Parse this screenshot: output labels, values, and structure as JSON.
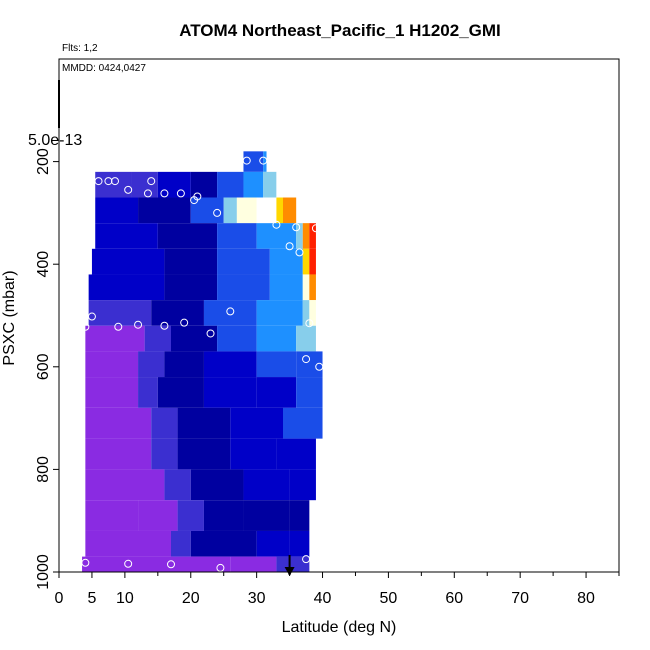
{
  "chart_data": {
    "type": "heatmap",
    "title": "ATOM4 Northeast_Pacific_1 H1202_GMI",
    "flights_label": "Flts: 1,2",
    "dates_label": "MMDD: 0424,0427",
    "scale_label": "5.0e-13",
    "xlabel": "Latitude (deg N)",
    "ylabel": "PSXC (mbar)",
    "xlim": [
      0,
      85
    ],
    "ylim": [
      1000,
      0
    ],
    "x_ticks": [
      0,
      5,
      10,
      20,
      30,
      40,
      50,
      60,
      70,
      80
    ],
    "y_ticks": [
      200,
      400,
      600,
      800,
      1000
    ],
    "colormap": [
      "#8a2be2",
      "#3b2fd0",
      "#0000c8",
      "#0000a0",
      "#1a4de8",
      "#1e90ff",
      "#87ceeb",
      "#ffffff",
      "#ffffe0",
      "#ffd700",
      "#ff8c00",
      "#ff2000"
    ],
    "color_scale_note": "value index 0-11 maps to colormap",
    "rows": [
      {
        "p_top": 180,
        "p_bot": 220,
        "cells": [
          {
            "x0": 28,
            "x1": 31,
            "v": 4
          },
          {
            "x0": 31,
            "x1": 31.5,
            "v": 5
          }
        ]
      },
      {
        "p_top": 220,
        "p_bot": 270,
        "cells": [
          {
            "x0": 5.5,
            "x1": 11,
            "v": 1
          },
          {
            "x0": 11,
            "x1": 15,
            "v": 1
          },
          {
            "x0": 15,
            "x1": 20,
            "v": 2
          },
          {
            "x0": 20,
            "x1": 24,
            "v": 3
          },
          {
            "x0": 24,
            "x1": 28,
            "v": 4
          },
          {
            "x0": 28,
            "x1": 31,
            "v": 5
          },
          {
            "x0": 31,
            "x1": 33,
            "v": 6
          },
          {
            "x0": 33,
            "x1": 34,
            "v": 7
          }
        ]
      },
      {
        "p_top": 270,
        "p_bot": 320,
        "cells": [
          {
            "x0": 5.5,
            "x1": 12,
            "v": 2
          },
          {
            "x0": 12,
            "x1": 20,
            "v": 3
          },
          {
            "x0": 20,
            "x1": 25,
            "v": 4
          },
          {
            "x0": 25,
            "x1": 27,
            "v": 6
          },
          {
            "x0": 27,
            "x1": 30,
            "v": 8
          },
          {
            "x0": 30,
            "x1": 33,
            "v": 7
          },
          {
            "x0": 33,
            "x1": 34,
            "v": 9
          },
          {
            "x0": 34,
            "x1": 36,
            "v": 10
          }
        ]
      },
      {
        "p_top": 320,
        "p_bot": 370,
        "cells": [
          {
            "x0": 5.5,
            "x1": 15,
            "v": 2
          },
          {
            "x0": 15,
            "x1": 24,
            "v": 3
          },
          {
            "x0": 24,
            "x1": 30,
            "v": 4
          },
          {
            "x0": 30,
            "x1": 36,
            "v": 5
          },
          {
            "x0": 36,
            "x1": 37,
            "v": 6
          },
          {
            "x0": 37,
            "x1": 38,
            "v": 10
          },
          {
            "x0": 38,
            "x1": 39,
            "v": 11
          }
        ]
      },
      {
        "p_top": 370,
        "p_bot": 420,
        "cells": [
          {
            "x0": 5,
            "x1": 16,
            "v": 2
          },
          {
            "x0": 16,
            "x1": 24,
            "v": 3
          },
          {
            "x0": 24,
            "x1": 32,
            "v": 4
          },
          {
            "x0": 32,
            "x1": 37,
            "v": 5
          },
          {
            "x0": 37,
            "x1": 38,
            "v": 9
          },
          {
            "x0": 38,
            "x1": 39,
            "v": 11
          }
        ]
      },
      {
        "p_top": 420,
        "p_bot": 470,
        "cells": [
          {
            "x0": 4.5,
            "x1": 16,
            "v": 2
          },
          {
            "x0": 16,
            "x1": 24,
            "v": 3
          },
          {
            "x0": 24,
            "x1": 32,
            "v": 4
          },
          {
            "x0": 32,
            "x1": 37,
            "v": 5
          },
          {
            "x0": 37,
            "x1": 38,
            "v": 8
          },
          {
            "x0": 38,
            "x1": 39,
            "v": 10
          }
        ]
      },
      {
        "p_top": 470,
        "p_bot": 520,
        "cells": [
          {
            "x0": 4.5,
            "x1": 14,
            "v": 1
          },
          {
            "x0": 14,
            "x1": 22,
            "v": 3
          },
          {
            "x0": 22,
            "x1": 30,
            "v": 4
          },
          {
            "x0": 30,
            "x1": 37,
            "v": 5
          },
          {
            "x0": 37,
            "x1": 38,
            "v": 6
          },
          {
            "x0": 38,
            "x1": 39,
            "v": 8
          }
        ]
      },
      {
        "p_top": 520,
        "p_bot": 570,
        "cells": [
          {
            "x0": 4,
            "x1": 13,
            "v": 0
          },
          {
            "x0": 13,
            "x1": 17,
            "v": 1
          },
          {
            "x0": 17,
            "x1": 24,
            "v": 3
          },
          {
            "x0": 24,
            "x1": 30,
            "v": 4
          },
          {
            "x0": 30,
            "x1": 36,
            "v": 5
          },
          {
            "x0": 36,
            "x1": 39,
            "v": 6
          }
        ]
      },
      {
        "p_top": 570,
        "p_bot": 620,
        "cells": [
          {
            "x0": 4,
            "x1": 12,
            "v": 0
          },
          {
            "x0": 12,
            "x1": 16,
            "v": 1
          },
          {
            "x0": 16,
            "x1": 22,
            "v": 3
          },
          {
            "x0": 22,
            "x1": 30,
            "v": 2
          },
          {
            "x0": 30,
            "x1": 36,
            "v": 4
          },
          {
            "x0": 36,
            "x1": 40,
            "v": 4
          }
        ]
      },
      {
        "p_top": 620,
        "p_bot": 680,
        "cells": [
          {
            "x0": 4,
            "x1": 12,
            "v": 0
          },
          {
            "x0": 12,
            "x1": 15,
            "v": 1
          },
          {
            "x0": 15,
            "x1": 22,
            "v": 3
          },
          {
            "x0": 22,
            "x1": 30,
            "v": 2
          },
          {
            "x0": 30,
            "x1": 36,
            "v": 2
          },
          {
            "x0": 36,
            "x1": 40,
            "v": 4
          }
        ]
      },
      {
        "p_top": 680,
        "p_bot": 740,
        "cells": [
          {
            "x0": 4,
            "x1": 14,
            "v": 0
          },
          {
            "x0": 14,
            "x1": 18,
            "v": 1
          },
          {
            "x0": 18,
            "x1": 26,
            "v": 3
          },
          {
            "x0": 26,
            "x1": 34,
            "v": 2
          },
          {
            "x0": 34,
            "x1": 40,
            "v": 4
          }
        ]
      },
      {
        "p_top": 740,
        "p_bot": 800,
        "cells": [
          {
            "x0": 4,
            "x1": 14,
            "v": 0
          },
          {
            "x0": 14,
            "x1": 18,
            "v": 1
          },
          {
            "x0": 18,
            "x1": 26,
            "v": 3
          },
          {
            "x0": 26,
            "x1": 33,
            "v": 2
          },
          {
            "x0": 33,
            "x1": 39,
            "v": 2
          }
        ]
      },
      {
        "p_top": 800,
        "p_bot": 860,
        "cells": [
          {
            "x0": 4,
            "x1": 16,
            "v": 0
          },
          {
            "x0": 16,
            "x1": 20,
            "v": 1
          },
          {
            "x0": 20,
            "x1": 28,
            "v": 3
          },
          {
            "x0": 28,
            "x1": 35,
            "v": 2
          },
          {
            "x0": 35,
            "x1": 39,
            "v": 2
          }
        ]
      },
      {
        "p_top": 860,
        "p_bot": 920,
        "cells": [
          {
            "x0": 4,
            "x1": 12,
            "v": 0
          },
          {
            "x0": 12,
            "x1": 18,
            "v": 0
          },
          {
            "x0": 18,
            "x1": 22,
            "v": 1
          },
          {
            "x0": 22,
            "x1": 28,
            "v": 3
          },
          {
            "x0": 28,
            "x1": 35,
            "v": 3
          },
          {
            "x0": 35,
            "x1": 38,
            "v": 3
          }
        ]
      },
      {
        "p_top": 920,
        "p_bot": 970,
        "cells": [
          {
            "x0": 4,
            "x1": 17,
            "v": 0
          },
          {
            "x0": 17,
            "x1": 20,
            "v": 1
          },
          {
            "x0": 20,
            "x1": 30,
            "v": 3
          },
          {
            "x0": 30,
            "x1": 35,
            "v": 2
          },
          {
            "x0": 35,
            "x1": 38,
            "v": 2
          }
        ]
      },
      {
        "p_top": 970,
        "p_bot": 1000,
        "cells": [
          {
            "x0": 3.5,
            "x1": 26,
            "v": 0
          },
          {
            "x0": 26,
            "x1": 33,
            "v": 0
          },
          {
            "x0": 33,
            "x1": 35,
            "v": 1
          },
          {
            "x0": 35,
            "x1": 38,
            "v": 1
          }
        ]
      }
    ],
    "points": [
      {
        "x": 28.5,
        "y": 198
      },
      {
        "x": 31,
        "y": 198
      },
      {
        "x": 6,
        "y": 238
      },
      {
        "x": 7.5,
        "y": 238
      },
      {
        "x": 8.5,
        "y": 238
      },
      {
        "x": 14,
        "y": 238
      },
      {
        "x": 10.5,
        "y": 255
      },
      {
        "x": 13.5,
        "y": 262
      },
      {
        "x": 16,
        "y": 262
      },
      {
        "x": 18.5,
        "y": 262
      },
      {
        "x": 21,
        "y": 268
      },
      {
        "x": 20.5,
        "y": 275
      },
      {
        "x": 24,
        "y": 300
      },
      {
        "x": 31,
        "y": 300
      },
      {
        "x": 33,
        "y": 323
      },
      {
        "x": 36,
        "y": 328
      },
      {
        "x": 39,
        "y": 330
      },
      {
        "x": 35,
        "y": 365
      },
      {
        "x": 36.5,
        "y": 377
      },
      {
        "x": 5,
        "y": 502
      },
      {
        "x": 4,
        "y": 522
      },
      {
        "x": 9,
        "y": 522
      },
      {
        "x": 12,
        "y": 518
      },
      {
        "x": 16,
        "y": 520
      },
      {
        "x": 19,
        "y": 514
      },
      {
        "x": 23,
        "y": 535
      },
      {
        "x": 26,
        "y": 492
      },
      {
        "x": 38,
        "y": 515
      },
      {
        "x": 37.5,
        "y": 585
      },
      {
        "x": 39.5,
        "y": 600
      },
      {
        "x": 4,
        "y": 982
      },
      {
        "x": 10.5,
        "y": 984
      },
      {
        "x": 17,
        "y": 985
      },
      {
        "x": 24.5,
        "y": 992
      },
      {
        "x": 37.5,
        "y": 975
      }
    ],
    "arrow_x": 35
  }
}
